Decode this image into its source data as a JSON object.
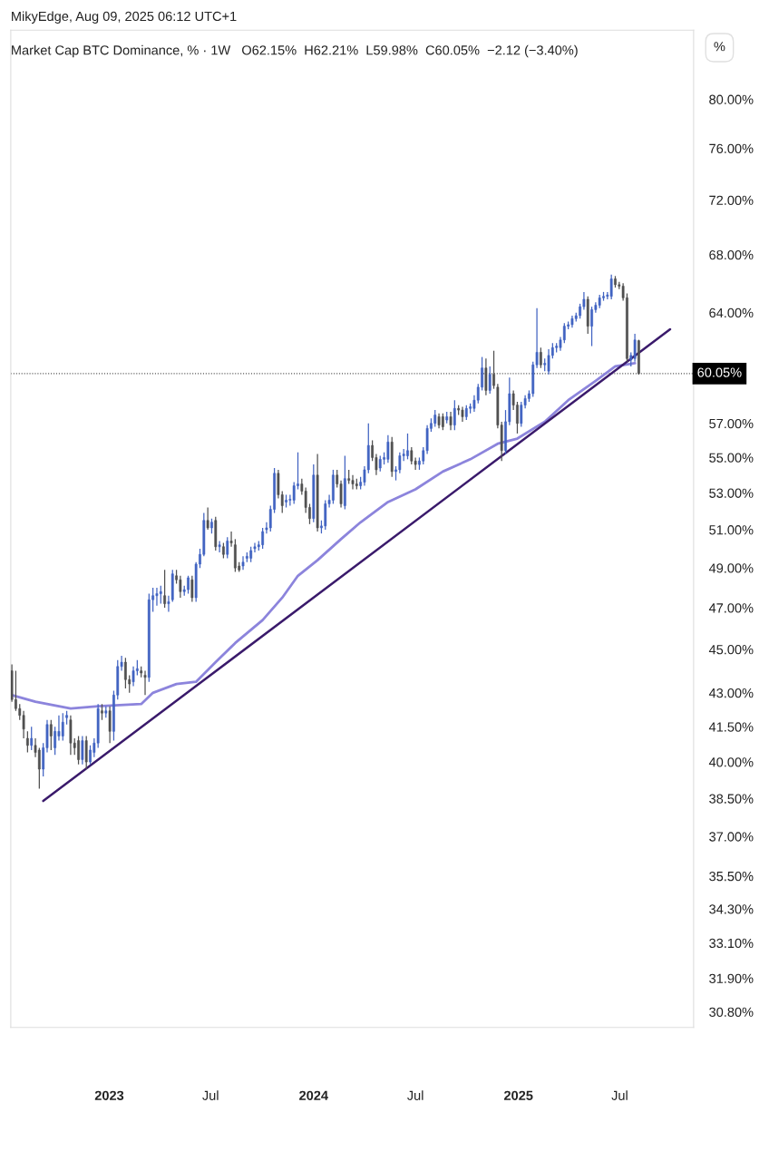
{
  "chart_data": {
    "type": "candlestick",
    "title": "Market Cap BTC Dominance, % · 1W   O62.15%  H62.21%  L59.98%  C60.05%  −2.12 (−3.40%)",
    "annotations": [
      "MikyEdge, Aug 09, 2025 06:12 UTC+1",
      "%"
    ],
    "x": [
      "2022-07-11",
      "2022-07-18",
      "2022-07-25",
      "2022-08-01",
      "2022-08-08",
      "2022-08-15",
      "2022-08-22",
      "2022-08-29",
      "2022-09-05",
      "2022-09-12",
      "2022-09-19",
      "2022-09-26",
      "2022-10-03",
      "2022-10-10",
      "2022-10-17",
      "2022-10-24",
      "2022-10-31",
      "2022-11-07",
      "2022-11-14",
      "2022-11-21",
      "2022-11-28",
      "2022-12-05",
      "2022-12-12",
      "2022-12-19",
      "2022-12-26",
      "2023-01-02",
      "2023-01-09",
      "2023-01-16",
      "2023-01-23",
      "2023-01-30",
      "2023-02-06",
      "2023-02-13",
      "2023-02-20",
      "2023-02-27",
      "2023-03-06",
      "2023-03-13",
      "2023-03-20",
      "2023-03-27",
      "2023-04-03",
      "2023-04-10",
      "2023-04-17",
      "2023-04-24",
      "2023-05-01",
      "2023-05-08",
      "2023-05-15",
      "2023-05-22",
      "2023-05-29",
      "2023-06-05",
      "2023-06-12",
      "2023-06-19",
      "2023-06-26",
      "2023-07-03",
      "2023-07-10",
      "2023-07-17",
      "2023-07-24",
      "2023-07-31",
      "2023-08-07",
      "2023-08-14",
      "2023-08-21",
      "2023-08-28",
      "2023-09-04",
      "2023-09-11",
      "2023-09-18",
      "2023-09-25",
      "2023-10-02",
      "2023-10-09",
      "2023-10-16",
      "2023-10-23",
      "2023-10-30",
      "2023-11-06",
      "2023-11-13",
      "2023-11-20",
      "2023-11-27",
      "2023-12-04",
      "2023-12-11",
      "2023-12-18",
      "2023-12-25",
      "2024-01-01",
      "2024-01-08",
      "2024-01-15",
      "2024-01-22",
      "2024-01-29",
      "2024-02-05",
      "2024-02-12",
      "2024-02-19",
      "2024-02-26",
      "2024-03-04",
      "2024-03-11",
      "2024-03-18",
      "2024-03-25",
      "2024-04-01",
      "2024-04-08",
      "2024-04-15",
      "2024-04-22",
      "2024-04-29",
      "2024-05-06",
      "2024-05-13",
      "2024-05-20",
      "2024-05-27",
      "2024-06-03",
      "2024-06-10",
      "2024-06-17",
      "2024-06-24",
      "2024-07-01",
      "2024-07-08",
      "2024-07-15",
      "2024-07-22",
      "2024-07-29",
      "2024-08-05",
      "2024-08-12",
      "2024-08-19",
      "2024-08-26",
      "2024-09-02",
      "2024-09-09",
      "2024-09-16",
      "2024-09-23",
      "2024-09-30",
      "2024-10-07",
      "2024-10-14",
      "2024-10-21",
      "2024-10-28",
      "2024-11-04",
      "2024-11-11",
      "2024-11-18",
      "2024-11-25",
      "2024-12-02",
      "2024-12-09",
      "2024-12-16",
      "2024-12-23",
      "2024-12-30",
      "2025-01-06",
      "2025-01-13",
      "2025-01-20",
      "2025-01-27",
      "2025-02-03",
      "2025-02-10",
      "2025-02-17",
      "2025-02-24",
      "2025-03-03",
      "2025-03-10",
      "2025-03-17",
      "2025-03-24",
      "2025-03-31",
      "2025-04-07",
      "2025-04-14",
      "2025-04-21",
      "2025-04-28",
      "2025-05-05",
      "2025-05-12",
      "2025-05-19",
      "2025-05-26",
      "2025-06-02",
      "2025-06-09",
      "2025-06-16",
      "2025-06-23",
      "2025-06-30",
      "2025-07-07",
      "2025-07-14",
      "2025-07-21",
      "2025-07-28",
      "2025-08-04"
    ],
    "ohlc": [
      [
        44.0,
        44.3,
        42.6,
        42.7
      ],
      [
        42.7,
        44.0,
        42.2,
        42.3
      ],
      [
        42.3,
        42.5,
        41.8,
        42.0
      ],
      [
        42.0,
        42.2,
        41.0,
        41.4
      ],
      [
        41.0,
        41.3,
        40.4,
        40.7
      ],
      [
        40.7,
        41.5,
        40.5,
        41.0
      ],
      [
        40.7,
        41.0,
        40.2,
        40.4
      ],
      [
        40.5,
        40.6,
        38.9,
        39.7
      ],
      [
        39.7,
        40.8,
        39.4,
        40.6
      ],
      [
        40.6,
        41.8,
        40.4,
        41.6
      ],
      [
        41.6,
        41.8,
        40.5,
        41.1
      ],
      [
        40.6,
        41.5,
        40.3,
        41.3
      ],
      [
        41.1,
        42.0,
        40.9,
        41.3
      ],
      [
        41.1,
        42.1,
        40.9,
        41.7
      ],
      [
        41.9,
        42.2,
        41.6,
        42.0
      ],
      [
        41.8,
        42.0,
        40.3,
        40.8
      ],
      [
        40.8,
        41.0,
        40.3,
        40.6
      ],
      [
        40.9,
        41.1,
        39.9,
        40.1
      ],
      [
        40.1,
        41.1,
        39.9,
        40.9
      ],
      [
        40.9,
        41.1,
        39.7,
        40.0
      ],
      [
        40.0,
        40.7,
        39.9,
        40.5
      ],
      [
        40.4,
        41.0,
        40.2,
        40.8
      ],
      [
        40.8,
        42.5,
        40.6,
        42.3
      ],
      [
        42.2,
        42.5,
        41.8,
        42.1
      ],
      [
        42.1,
        42.4,
        41.9,
        42.2
      ],
      [
        42.2,
        42.4,
        40.8,
        41.3
      ],
      [
        41.3,
        43.1,
        40.9,
        42.9
      ],
      [
        42.9,
        44.5,
        42.7,
        44.2
      ],
      [
        44.2,
        44.7,
        44.0,
        44.4
      ],
      [
        44.4,
        44.6,
        43.2,
        43.6
      ],
      [
        43.6,
        43.8,
        43.0,
        43.4
      ],
      [
        43.5,
        44.2,
        43.3,
        44.0
      ],
      [
        44.0,
        44.5,
        43.8,
        44.1
      ],
      [
        44.0,
        44.2,
        43.7,
        43.9
      ],
      [
        43.8,
        44.0,
        42.9,
        43.7
      ],
      [
        43.7,
        47.7,
        43.5,
        47.4
      ],
      [
        47.4,
        48.0,
        46.8,
        47.6
      ],
      [
        47.6,
        48.0,
        47.1,
        47.7
      ],
      [
        47.7,
        48.1,
        47.2,
        47.8
      ],
      [
        47.6,
        48.9,
        47.0,
        47.2
      ],
      [
        47.2,
        47.6,
        46.8,
        47.3
      ],
      [
        47.4,
        48.9,
        47.3,
        48.7
      ],
      [
        48.6,
        48.9,
        48.2,
        48.4
      ],
      [
        48.4,
        48.6,
        47.5,
        47.8
      ],
      [
        47.8,
        48.1,
        47.6,
        47.9
      ],
      [
        47.9,
        48.6,
        47.7,
        48.5
      ],
      [
        48.4,
        48.6,
        47.3,
        47.5
      ],
      [
        47.5,
        49.3,
        47.3,
        49.2
      ],
      [
        49.2,
        50.0,
        49.0,
        49.7
      ],
      [
        49.7,
        51.9,
        49.6,
        51.5
      ],
      [
        51.5,
        52.2,
        51.0,
        51.1
      ],
      [
        51.1,
        51.6,
        50.8,
        51.4
      ],
      [
        51.5,
        51.7,
        49.9,
        50.1
      ],
      [
        50.1,
        50.4,
        49.8,
        50.2
      ],
      [
        50.1,
        50.3,
        49.5,
        49.7
      ],
      [
        49.7,
        50.6,
        49.5,
        50.4
      ],
      [
        50.4,
        50.9,
        50.1,
        50.3
      ],
      [
        50.2,
        50.5,
        48.8,
        49.0
      ],
      [
        49.1,
        49.3,
        48.8,
        48.9
      ],
      [
        49.1,
        49.6,
        48.9,
        49.3
      ],
      [
        49.5,
        49.8,
        49.3,
        49.6
      ],
      [
        49.5,
        50.1,
        49.3,
        49.9
      ],
      [
        50.0,
        50.3,
        49.8,
        50.1
      ],
      [
        50.1,
        50.4,
        49.9,
        50.2
      ],
      [
        50.2,
        51.1,
        50.0,
        50.9
      ],
      [
        51.0,
        51.4,
        50.8,
        51.1
      ],
      [
        51.1,
        52.3,
        50.9,
        52.1
      ],
      [
        52.1,
        54.4,
        51.9,
        54.1
      ],
      [
        54.1,
        54.3,
        52.7,
        52.9
      ],
      [
        52.9,
        53.1,
        51.9,
        52.3
      ],
      [
        52.5,
        52.9,
        52.2,
        52.6
      ],
      [
        52.6,
        52.9,
        52.3,
        52.6
      ],
      [
        52.6,
        53.6,
        52.4,
        53.4
      ],
      [
        53.4,
        55.3,
        53.2,
        53.5
      ],
      [
        53.5,
        53.8,
        52.9,
        53.1
      ],
      [
        53.1,
        53.3,
        51.9,
        52.2
      ],
      [
        52.2,
        52.4,
        51.3,
        51.6
      ],
      [
        51.6,
        54.6,
        51.4,
        54.0
      ],
      [
        54.0,
        55.2,
        50.9,
        51.1
      ],
      [
        51.1,
        51.5,
        50.8,
        51.2
      ],
      [
        51.2,
        52.6,
        51.0,
        52.4
      ],
      [
        52.4,
        52.9,
        52.2,
        52.6
      ],
      [
        52.6,
        54.3,
        52.4,
        54.0
      ],
      [
        54.0,
        54.3,
        53.3,
        53.5
      ],
      [
        53.5,
        53.7,
        52.2,
        52.4
      ],
      [
        52.3,
        55.1,
        52.1,
        53.8
      ],
      [
        53.8,
        54.3,
        53.5,
        53.7
      ],
      [
        53.7,
        54.0,
        53.2,
        53.5
      ],
      [
        53.5,
        53.8,
        53.2,
        53.4
      ],
      [
        53.4,
        53.9,
        53.2,
        53.6
      ],
      [
        53.6,
        54.5,
        53.4,
        54.3
      ],
      [
        54.3,
        57.0,
        54.1,
        55.7
      ],
      [
        55.7,
        56.0,
        54.8,
        55.0
      ],
      [
        55.0,
        55.2,
        54.0,
        54.3
      ],
      [
        54.4,
        55.1,
        54.2,
        54.9
      ],
      [
        54.9,
        55.3,
        54.6,
        55.0
      ],
      [
        54.9,
        56.3,
        54.7,
        55.9
      ],
      [
        55.9,
        56.2,
        53.9,
        54.2
      ],
      [
        54.2,
        54.5,
        53.7,
        54.3
      ],
      [
        54.3,
        55.3,
        54.1,
        55.1
      ],
      [
        55.1,
        55.5,
        54.8,
        55.2
      ],
      [
        55.1,
        56.4,
        54.9,
        55.4
      ],
      [
        55.4,
        55.6,
        54.6,
        54.8
      ],
      [
        54.8,
        55.0,
        54.3,
        54.6
      ],
      [
        54.6,
        55.0,
        54.3,
        54.8
      ],
      [
        54.8,
        55.6,
        54.6,
        55.4
      ],
      [
        55.4,
        56.9,
        55.2,
        56.7
      ],
      [
        56.7,
        57.3,
        56.5,
        57.0
      ],
      [
        57.0,
        57.8,
        56.8,
        57.5
      ],
      [
        57.4,
        57.6,
        56.7,
        56.9
      ],
      [
        57.4,
        57.6,
        56.6,
        56.8
      ],
      [
        57.2,
        57.7,
        57.0,
        57.4
      ],
      [
        57.4,
        57.7,
        56.6,
        56.9
      ],
      [
        56.9,
        58.4,
        56.6,
        57.9
      ],
      [
        57.9,
        58.1,
        57.5,
        57.8
      ],
      [
        57.8,
        58.0,
        57.1,
        57.4
      ],
      [
        57.4,
        58.1,
        57.2,
        57.9
      ],
      [
        57.9,
        58.2,
        57.6,
        58.0
      ],
      [
        57.9,
        58.7,
        57.7,
        58.4
      ],
      [
        58.4,
        59.4,
        58.2,
        59.2
      ],
      [
        59.2,
        61.1,
        59.0,
        60.4
      ],
      [
        60.4,
        61.0,
        58.7,
        59.0
      ],
      [
        59.0,
        60.5,
        58.8,
        60.0
      ],
      [
        60.0,
        61.5,
        59.1,
        59.3
      ],
      [
        59.2,
        59.4,
        56.7,
        56.9
      ],
      [
        56.9,
        57.1,
        54.8,
        55.4
      ],
      [
        55.4,
        57.8,
        55.2,
        57.1
      ],
      [
        57.1,
        59.8,
        56.9,
        58.8
      ],
      [
        58.8,
        59.0,
        57.8,
        58.1
      ],
      [
        58.1,
        58.3,
        56.4,
        57.0
      ],
      [
        57.0,
        58.3,
        56.8,
        58.1
      ],
      [
        58.1,
        58.7,
        57.9,
        58.5
      ],
      [
        58.5,
        59.0,
        58.3,
        58.8
      ],
      [
        58.8,
        60.8,
        58.6,
        60.6
      ],
      [
        60.6,
        64.3,
        60.4,
        61.4
      ],
      [
        61.4,
        61.7,
        60.4,
        60.6
      ],
      [
        60.6,
        61.0,
        60.2,
        60.7
      ],
      [
        60.2,
        61.6,
        60.0,
        61.2
      ],
      [
        61.2,
        62.0,
        61.0,
        61.7
      ],
      [
        61.7,
        62.0,
        61.4,
        61.8
      ],
      [
        61.7,
        62.4,
        61.5,
        62.2
      ],
      [
        62.2,
        63.3,
        62.0,
        63.1
      ],
      [
        63.1,
        63.4,
        62.9,
        63.2
      ],
      [
        63.2,
        63.8,
        63.0,
        63.6
      ],
      [
        63.6,
        64.0,
        63.4,
        63.8
      ],
      [
        63.8,
        64.6,
        63.6,
        64.4
      ],
      [
        64.4,
        65.4,
        64.2,
        64.9
      ],
      [
        64.9,
        65.1,
        62.6,
        63.1
      ],
      [
        63.1,
        64.4,
        61.8,
        64.2
      ],
      [
        64.2,
        64.7,
        64.0,
        64.5
      ],
      [
        64.5,
        65.2,
        64.3,
        65.0
      ],
      [
        65.0,
        65.4,
        64.8,
        65.1
      ],
      [
        65.1,
        65.4,
        64.9,
        65.2
      ],
      [
        65.1,
        66.6,
        64.9,
        66.3
      ],
      [
        66.3,
        66.5,
        65.7,
        65.9
      ],
      [
        65.9,
        66.1,
        65.6,
        65.8
      ],
      [
        65.8,
        66.0,
        64.8,
        65.0
      ],
      [
        65.0,
        65.3,
        60.8,
        61.0
      ],
      [
        60.9,
        61.4,
        60.5,
        61.2
      ],
      [
        61.0,
        62.6,
        60.8,
        62.2
      ],
      [
        62.15,
        62.21,
        59.98,
        60.05
      ]
    ],
    "series": [
      {
        "type": "line",
        "color": "#8c84dc",
        "x": [
          "2022-07-11",
          "2022-08-22",
          "2022-10-24",
          "2022-12-12",
          "2023-02-27",
          "2023-03-20",
          "2023-05-01",
          "2023-06-05",
          "2023-07-10",
          "2023-08-14",
          "2023-10-02",
          "2023-11-06",
          "2023-12-04",
          "2024-01-08",
          "2024-02-19",
          "2024-03-25",
          "2024-05-13",
          "2024-07-01",
          "2024-08-19",
          "2024-10-07",
          "2024-11-25",
          "2024-12-30",
          "2025-02-17",
          "2025-03-31",
          "2025-05-19",
          "2025-06-23",
          "2025-07-28"
        ],
        "values": [
          42.9,
          42.6,
          42.3,
          42.4,
          42.5,
          43.0,
          43.4,
          43.5,
          44.4,
          45.3,
          46.4,
          47.5,
          48.6,
          49.4,
          50.5,
          51.4,
          52.5,
          53.2,
          54.2,
          54.9,
          55.8,
          56.1,
          57.1,
          58.4,
          59.6,
          60.5,
          60.7
        ]
      },
      {
        "type": "line",
        "color": "#3a1a6b",
        "x": [
          "2022-09-05",
          "2025-09-29"
        ],
        "values": [
          38.4,
          62.9
        ]
      }
    ],
    "log": true,
    "xlim": [
      "2022-07-09",
      "2025-11-10"
    ],
    "xticks": [
      {
        "value": "2023-01-01",
        "label": "2023"
      },
      {
        "value": "2023-07-01",
        "label": "Jul"
      },
      {
        "value": "2024-01-01",
        "label": "2024"
      },
      {
        "value": "2024-07-01",
        "label": "Jul"
      },
      {
        "value": "2025-01-01",
        "label": "2025"
      },
      {
        "value": "2025-07-01",
        "label": "Jul"
      }
    ],
    "ylim": [
      30.3,
      86.0
    ],
    "yticks": [
      {
        "value": 80,
        "label": "80.00%"
      },
      {
        "value": 76,
        "label": "76.00%"
      },
      {
        "value": 72,
        "label": "72.00%"
      },
      {
        "value": 68,
        "label": "68.00%"
      },
      {
        "value": 64,
        "label": "64.00%"
      },
      {
        "value": 57,
        "label": "57.00%"
      },
      {
        "value": 55,
        "label": "55.00%"
      },
      {
        "value": 53,
        "label": "53.00%"
      },
      {
        "value": 51,
        "label": "51.00%"
      },
      {
        "value": 49,
        "label": "49.00%"
      },
      {
        "value": 47,
        "label": "47.00%"
      },
      {
        "value": 45,
        "label": "45.00%"
      },
      {
        "value": 43,
        "label": "43.00%"
      },
      {
        "value": 41.5,
        "label": "41.50%"
      },
      {
        "value": 40,
        "label": "40.00%"
      },
      {
        "value": 38.5,
        "label": "38.50%"
      },
      {
        "value": 37,
        "label": "37.00%"
      },
      {
        "value": 35.5,
        "label": "35.50%"
      },
      {
        "value": 34.3,
        "label": "34.30%"
      },
      {
        "value": 33.1,
        "label": "33.10%"
      },
      {
        "value": 31.9,
        "label": "31.90%"
      },
      {
        "value": 30.8,
        "label": "30.80%"
      }
    ],
    "ref_lines": [
      {
        "axis": "y",
        "value": 60.05,
        "label": "60.05%",
        "color": "#555555",
        "line_style": "dotted"
      }
    ],
    "grid": false,
    "legend": false
  }
}
